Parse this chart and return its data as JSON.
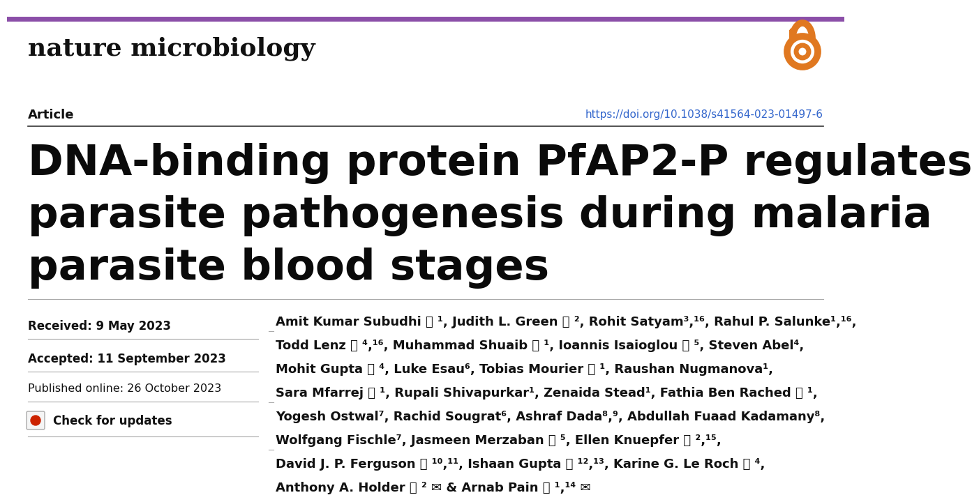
{
  "bg_color": "#ffffff",
  "purple_line_color": "#8b4fa8",
  "journal_name": "nature microbiology",
  "journal_font_size": 26,
  "open_access_color": "#e07820",
  "article_label": "Article",
  "doi_text": "https://doi.org/10.1038/s41564-023-01497-6",
  "doi_color": "#3366cc",
  "paper_title_line1": "DNA-binding protein PfAP2-P regulates",
  "paper_title_line2": "parasite pathogenesis during malaria",
  "paper_title_line3": "parasite blood stages",
  "title_font_size": 44,
  "received_label": "Received: 9 May 2023",
  "accepted_label": "Accepted: 11 September 2023",
  "published_label": "Published online: 26 October 2023",
  "check_updates_label": "Check for updates",
  "authors_line1": "Amit Kumar Subudhi ⓘ ¹, Judith L. Green ⓘ ², Rohit Satyam³,¹⁶, Rahul P. Salunke¹,¹⁶,",
  "authors_line2": "Todd Lenz ⓘ ⁴,¹⁶, Muhammad Shuaib ⓘ ¹, Ioannis Isaioglou ⓘ ⁵, Steven Abel⁴,",
  "authors_line3": "Mohit Gupta ⓘ ⁴, Luke Esau⁶, Tobias Mourier ⓘ ¹, Raushan Nugmanova¹,",
  "authors_line4": "Sara Mfarrej ⓘ ¹, Rupali Shivapurkar¹, Zenaida Stead¹, Fathia Ben Rached ⓘ ¹,",
  "authors_line5": "Yogesh Ostwal⁷, Rachid Sougrat⁶, Ashraf Dada⁸,⁹, Abdullah Fuaad Kadamany⁸,",
  "authors_line6": "Wolfgang Fischle⁷, Jasmeen Merzaban ⓘ ⁵, Ellen Knuepfer ⓘ ²,¹⁵,",
  "authors_line7": "David J. P. Ferguson ⓘ ¹⁰,¹¹, Ishaan Gupta ⓘ ¹²,¹³, Karine G. Le Roch ⓘ ⁴,",
  "authors_line8": "Anthony A. Holder ⓘ ² ✉ & Arnab Pain ⓘ ¹,¹⁴ ✉",
  "authors_font_size": 13.0
}
